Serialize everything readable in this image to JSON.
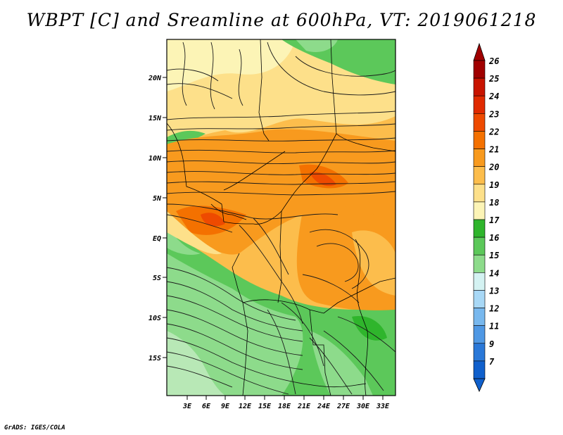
{
  "title": "WBPT [C] and Sreamline at 600hPa, VT: 2019061218",
  "credit": "GrADS: IGES/COLA",
  "map": {
    "lat_ticks": [
      "20N",
      "15N",
      "10N",
      "5N",
      "EQ",
      "5S",
      "10S",
      "15S"
    ],
    "lon_ticks": [
      "3E",
      "6E",
      "9E",
      "12E",
      "15E",
      "18E",
      "21E",
      "24E",
      "27E",
      "30E",
      "33E"
    ]
  },
  "legend": {
    "labels": [
      "26",
      "25",
      "24",
      "23",
      "22",
      "21",
      "20",
      "19",
      "18",
      "17",
      "16",
      "15",
      "14",
      "13",
      "12",
      "11",
      "9",
      "7"
    ],
    "colors": [
      "#a00000",
      "#c81400",
      "#e02a00",
      "#ee4a00",
      "#f47100",
      "#f89a1e",
      "#fcbd4c",
      "#fde08a",
      "#fcf4b6",
      "#2fb52c",
      "#5cc85a",
      "#8ddb8b",
      "#d4f2f2",
      "#a8d8f6",
      "#78b8ee",
      "#4f98e4",
      "#2a78d8",
      "#1060cc"
    ]
  }
}
